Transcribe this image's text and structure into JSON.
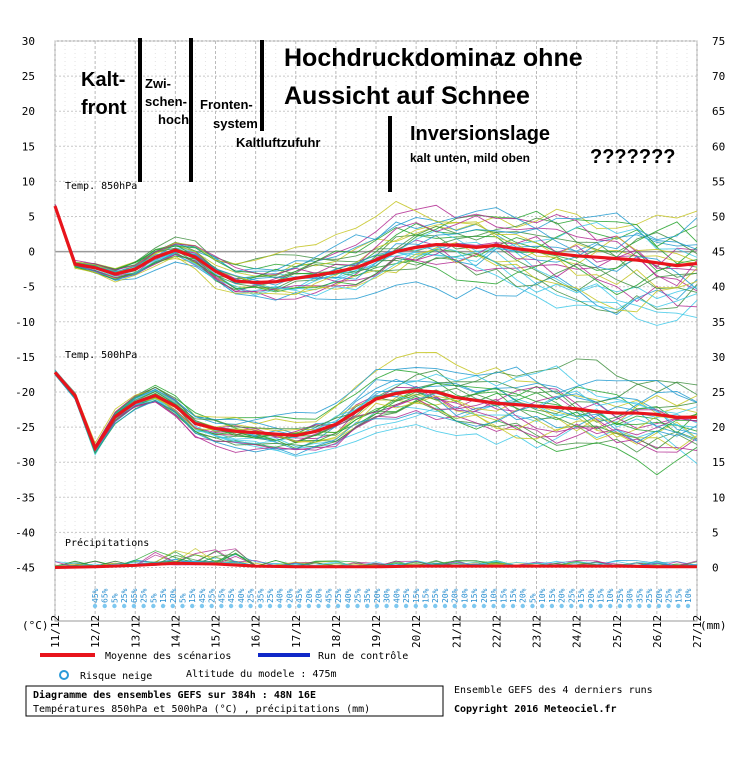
{
  "chart_data": {
    "type": "line",
    "title": "Diagramme des ensembles GEFS sur 384h : 48N 16E",
    "subtitle": "Températures 850hPa et 500hPa (°C) , précipitations (mm)",
    "y_left_ticks": [
      "30",
      "25",
      "20",
      "15",
      "10",
      "5",
      "0",
      "-5",
      "-10",
      "-15",
      "-20",
      "-25",
      "-30",
      "-35",
      "-40",
      "-45"
    ],
    "y_right_ticks": [
      "75",
      "70",
      "65",
      "60",
      "55",
      "50",
      "45",
      "40",
      "35",
      "30",
      "25",
      "20",
      "15",
      "10",
      "5",
      "0"
    ],
    "y_left_unit": "(°C)",
    "y_right_unit": "(mm)",
    "x_labels": [
      "11/12",
      "12/12",
      "13/12",
      "14/12",
      "15/12",
      "16/12",
      "17/12",
      "18/12",
      "19/12",
      "20/12",
      "21/12",
      "22/12",
      "23/12",
      "24/12",
      "25/12",
      "26/12",
      "27/12"
    ],
    "panel_labels": {
      "t850": "Temp. 850hPa",
      "t500": "Temp. 500hPa",
      "precip": "Précipitations"
    },
    "series": [
      {
        "name": "Moyenne des scénarios",
        "panel": "Temp. 850hPa",
        "color": "#e8141c",
        "x": [
          "11/12",
          "11/12 12h",
          "12/12",
          "12/12 12h",
          "13/12",
          "13/12 12h",
          "14/12",
          "14/12 12h",
          "15/12",
          "15/12 12h",
          "16/12",
          "16/12 12h",
          "17/12",
          "17/12 12h",
          "18/12",
          "18/12 12h",
          "19/12",
          "19/12 12h",
          "20/12",
          "20/12 12h",
          "21/12",
          "21/12 12h",
          "22/12",
          "22/12 12h",
          "23/12",
          "23/12 12h",
          "24/12",
          "24/12 12h",
          "25/12",
          "25/12 12h",
          "26/12",
          "26/12 12h",
          "27/12"
        ],
        "values": [
          6.5,
          -1.8,
          -2.3,
          -3.2,
          -2.5,
          -0.8,
          0.2,
          -0.8,
          -2.8,
          -4.2,
          -4.4,
          -4.3,
          -3.8,
          -3.4,
          -2.9,
          -2.3,
          -1.2,
          0.0,
          0.6,
          1.0,
          0.9,
          0.6,
          0.9,
          0.4,
          0.1,
          -0.3,
          -0.6,
          -0.8,
          -1.0,
          -1.2,
          -1.6,
          -2.0,
          -1.7
        ]
      },
      {
        "name": "Moyenne des scénarios",
        "panel": "Temp. 500hPa",
        "color": "#e8141c",
        "x": [
          "11/12",
          "11/12 12h",
          "12/12",
          "12/12 12h",
          "13/12",
          "13/12 12h",
          "14/12",
          "14/12 12h",
          "15/12",
          "15/12 12h",
          "16/12",
          "16/12 12h",
          "17/12",
          "17/12 12h",
          "18/12",
          "18/12 12h",
          "19/12",
          "19/12 12h",
          "20/12",
          "20/12 12h",
          "21/12",
          "21/12 12h",
          "22/12",
          "22/12 12h",
          "23/12",
          "23/12 12h",
          "24/12",
          "24/12 12h",
          "25/12",
          "25/12 12h",
          "26/12",
          "26/12 12h",
          "27/12"
        ],
        "values": [
          -17.2,
          -20.5,
          -28.0,
          -23.5,
          -21.5,
          -20.5,
          -22.0,
          -24.5,
          -25.2,
          -25.6,
          -25.8,
          -26.0,
          -26.2,
          -25.6,
          -24.6,
          -22.8,
          -21.0,
          -20.2,
          -19.8,
          -20.0,
          -20.8,
          -21.2,
          -21.6,
          -21.8,
          -22.0,
          -22.2,
          -22.4,
          -22.8,
          -23.0,
          -23.0,
          -23.2,
          -23.6,
          -23.6
        ]
      },
      {
        "name": "Moyenne des scénarios",
        "panel": "Précipitations",
        "unit": "mm",
        "color": "#e8141c",
        "x": [
          "11/12",
          "12/12",
          "13/12",
          "14/12",
          "15/12",
          "16/12",
          "17/12",
          "18/12",
          "19/12",
          "20/12",
          "21/12",
          "22/12",
          "23/12",
          "24/12",
          "25/12",
          "26/12",
          "27/12"
        ],
        "values": [
          0,
          0.1,
          0.3,
          0.6,
          0.5,
          0.2,
          0.1,
          0.1,
          0.1,
          0.2,
          0.2,
          0.2,
          0.2,
          0.2,
          0.2,
          0.1,
          0.1
        ]
      }
    ],
    "snow_risk_percent": [
      "45%",
      "65%",
      "5%",
      "25%",
      "65%",
      "25%",
      "5%",
      "15%",
      "20%",
      "5%",
      "15%",
      "45%",
      "25%",
      "45%",
      "45%",
      "40%",
      "25%",
      "35%",
      "25%",
      "40%",
      "20%",
      "45%",
      "20%",
      "20%",
      "45%",
      "25%",
      "40%",
      "25%",
      "35%",
      "20%",
      "30%",
      "40%",
      "25%",
      "15%",
      "15%",
      "25%",
      "20%",
      "20%",
      "10%",
      "15%",
      "20%",
      "10%",
      "15%",
      "15%",
      "20%",
      "5%",
      "10%",
      "15%",
      "20%",
      "25%",
      "15%",
      "20%",
      "15%",
      "10%",
      "25%",
      "30%",
      "35%",
      "25%",
      "20%",
      "25%",
      "15%",
      "10%"
    ],
    "legend": [
      {
        "label": "Moyenne des scénarios",
        "color": "#e8141c"
      },
      {
        "label": "Run de contrôle",
        "color": "#1028c8"
      },
      {
        "label": "Risque neige",
        "color": "#2a9ad8"
      }
    ],
    "altitude_text": "Altitude du modele : 475m",
    "source_text": "Ensemble GEFS des 4 derniers runs",
    "copyright": "Copyright 2016 Meteociel.fr",
    "annotations": [
      "Kalt-",
      "front",
      "Zwi-",
      "schen-",
      "hoch",
      "Fronten-",
      "system",
      "Kaltluftzufuhr",
      "Hochdruckdominaz ohne",
      "Aussicht auf Schnee",
      "Inversionslage",
      "kalt unten, mild oben",
      "???????"
    ],
    "colors": {
      "ensemble": [
        "#23a32b",
        "#3cc8e8",
        "#c4c41e",
        "#b0268f",
        "#3f8f3f",
        "#1e9ad0"
      ],
      "mean": "#e8141c",
      "control": "#1028c8"
    }
  }
}
